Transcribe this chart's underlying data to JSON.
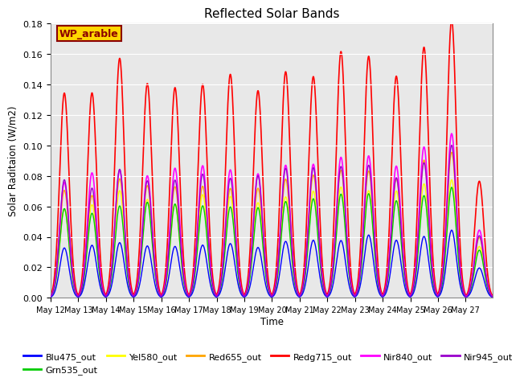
{
  "title": "Reflected Solar Bands",
  "xlabel": "Time",
  "ylabel": "Solar Raditaion (W/m2)",
  "annotation_text": "WP_arable",
  "annotation_color": "#8B0000",
  "annotation_bg": "#FFD700",
  "annotation_border": "#8B0000",
  "ylim": [
    0,
    0.18
  ],
  "yticks": [
    0.0,
    0.02,
    0.04,
    0.06,
    0.08,
    0.1,
    0.12,
    0.14,
    0.16,
    0.18
  ],
  "series_order": [
    "Blu475_out",
    "Grn535_out",
    "Yel580_out",
    "Red655_out",
    "Redg715_out",
    "Nir840_out",
    "Nir945_out"
  ],
  "series": {
    "Blu475_out": {
      "color": "#0000FF",
      "peak_scale": 0.038
    },
    "Grn535_out": {
      "color": "#00CC00",
      "peak_scale": 0.065
    },
    "Yel580_out": {
      "color": "#FFFF00",
      "peak_scale": 0.07
    },
    "Red655_out": {
      "color": "#FFA500",
      "peak_scale": 0.08
    },
    "Redg715_out": {
      "color": "#FF0000",
      "peak_scale": 0.155
    },
    "Nir840_out": {
      "color": "#FF00FF",
      "peak_scale": 0.09
    },
    "Nir945_out": {
      "color": "#9900CC",
      "peak_scale": 0.085
    }
  },
  "plot_bg": "#E8E8E8",
  "n_days": 16,
  "points_per_day": 96,
  "day_peaks": [
    0.87,
    0.88,
    0.97,
    0.92,
    0.91,
    0.93,
    0.91,
    0.9,
    0.97,
    0.97,
    1.03,
    1.04,
    0.97,
    1.08,
    1.15,
    0.5
  ]
}
